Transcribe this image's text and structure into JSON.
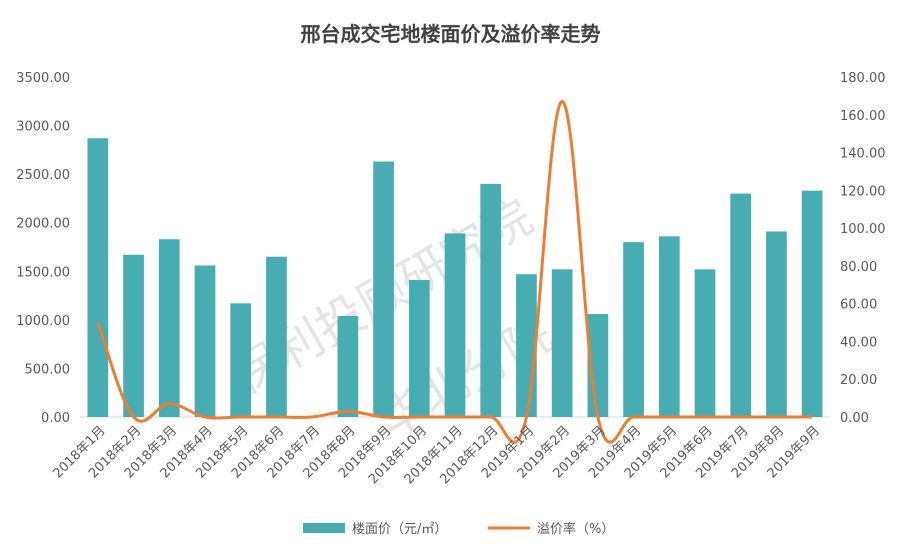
{
  "chart_data": {
    "type": "bar+line",
    "title": "邢台成交宅地楼面价及溢价率走势",
    "categories": [
      "2018年1月",
      "2018年2月",
      "2018年3月",
      "2018年4月",
      "2018年5月",
      "2018年6月",
      "2018年7月",
      "2018年8月",
      "2018年9月",
      "2018年10月",
      "2018年11月",
      "2018年12月",
      "2019年1月",
      "2019年2月",
      "2019年3月",
      "2019年4月",
      "2019年5月",
      "2019年6月",
      "2019年7月",
      "2019年8月",
      "2019年9月"
    ],
    "series": [
      {
        "name": "楼面价（元/㎡）",
        "type": "bar",
        "axis": "left",
        "color": "#47adb3",
        "values": [
          2870,
          1670,
          1830,
          1560,
          1170,
          1650,
          null,
          1040,
          2630,
          1410,
          1890,
          2400,
          1470,
          1520,
          1060,
          1800,
          1860,
          1520,
          2300,
          1910,
          2330
        ]
      },
      {
        "name": "溢价率（%）",
        "type": "line",
        "axis": "right",
        "color": "#ed7d31",
        "values": [
          50,
          0,
          7,
          0,
          0,
          0,
          0,
          3,
          0,
          0,
          0,
          0,
          0,
          167,
          0,
          0,
          0,
          0,
          0,
          0,
          0
        ]
      }
    ],
    "y_left": {
      "min": 0,
      "max": 3500,
      "step": 500,
      "tick_labels": [
        "0.00",
        "500.00",
        "1000.00",
        "1500.00",
        "2000.00",
        "2500.00",
        "3000.00",
        "3500.00"
      ]
    },
    "y_right": {
      "min": 0,
      "max": 180,
      "step": 20,
      "tick_labels": [
        "0.00",
        "20.00",
        "40.00",
        "60.00",
        "80.00",
        "100.00",
        "120.00",
        "140.00",
        "160.00",
        "180.00"
      ]
    },
    "legend_position": "bottom",
    "grid": false
  },
  "watermark": {
    "line1": "保利投顾研究院",
    "line2": "华北分院"
  }
}
